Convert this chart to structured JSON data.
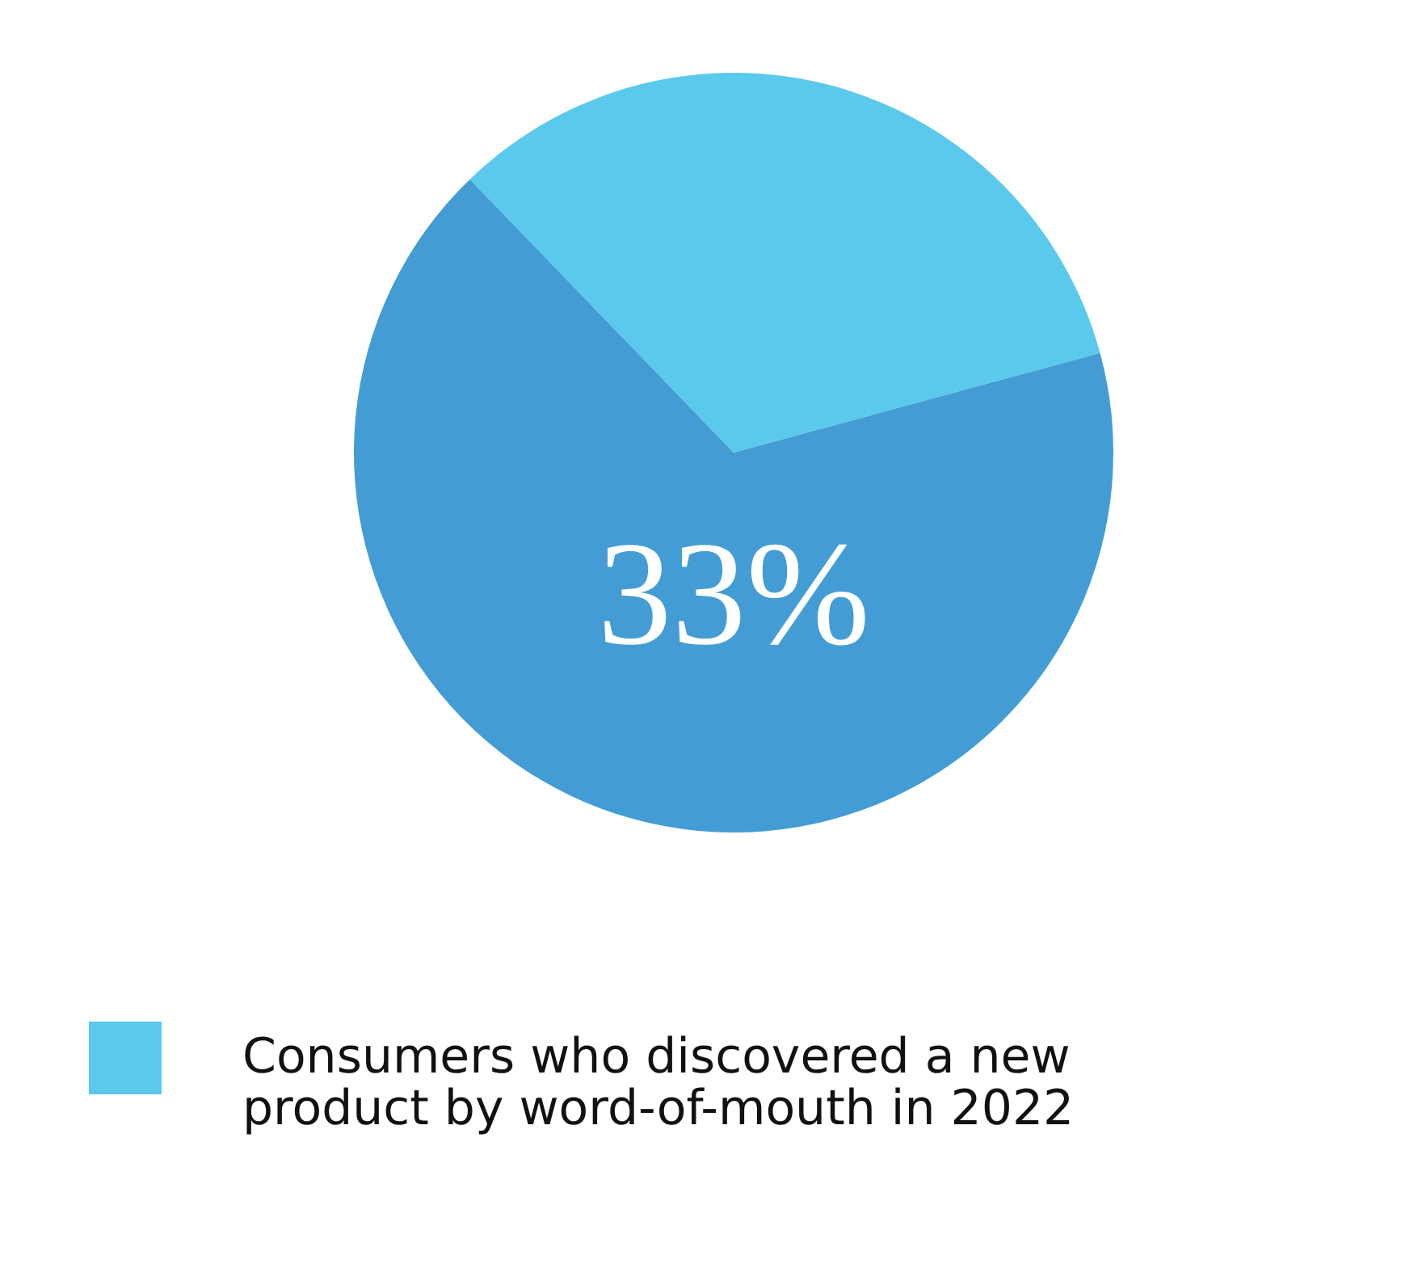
{
  "chart_data": {
    "type": "pie",
    "categories": [
      "Consumers who discovered a new product by word-of-mouth in 2022",
      null
    ],
    "values": [
      33,
      67
    ],
    "colors": [
      "#5bc9eb",
      "#439dd4"
    ],
    "annotations": [
      "33%"
    ],
    "legend": "bottom"
  }
}
